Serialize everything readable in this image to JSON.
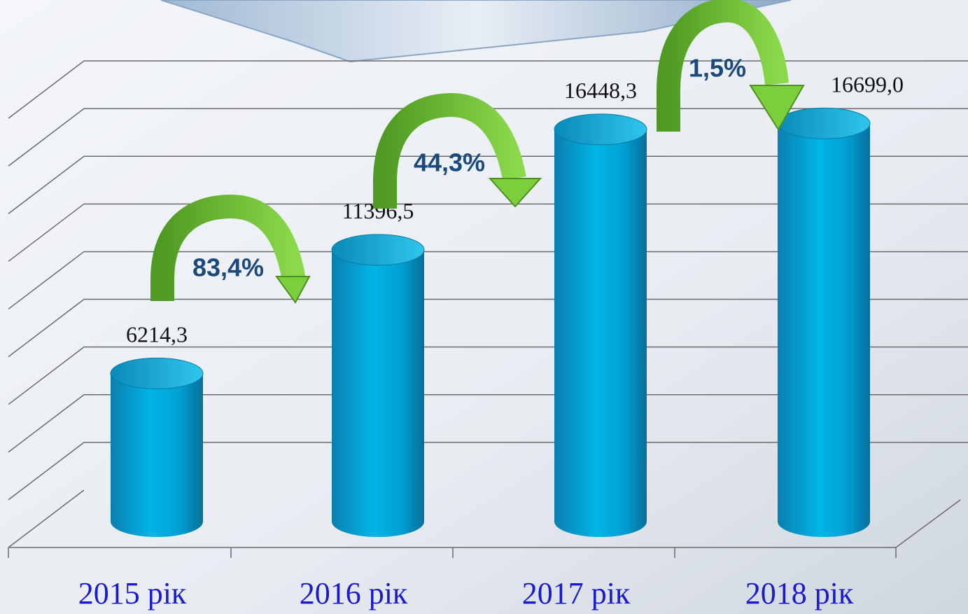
{
  "chart_data": {
    "type": "bar",
    "categories": [
      "2015 рік",
      "2016 рік",
      "2017 рік",
      "2018 рік"
    ],
    "values": [
      6214.3,
      11396.5,
      16448.3,
      16699.0
    ],
    "value_labels": [
      "6214,3",
      "11396,5",
      "16448,3",
      "16699,0"
    ],
    "annotations": [
      "83,4%",
      "44,3%",
      "1,5%"
    ],
    "color": "#00a9dc",
    "ylim": [
      0,
      18000
    ],
    "yticks": [
      0,
      2000,
      4000,
      6000,
      8000,
      10000,
      12000,
      14000,
      16000,
      18000
    ],
    "grid": true
  }
}
